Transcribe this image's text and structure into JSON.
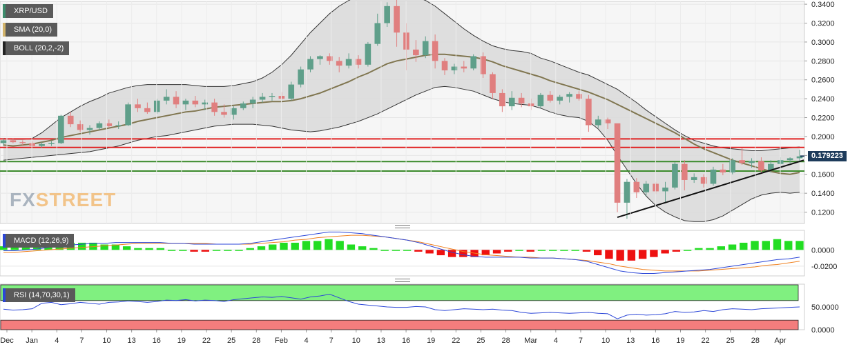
{
  "indicators": {
    "symbol": "XRP/USD",
    "sma": "SMA (20,0)",
    "boll": "BOLL (20,2,-2)",
    "macd": "MACD (12,26,9)",
    "rsi": "RSI (14,70,30,1)"
  },
  "colors": {
    "bull": "#5f9f8a",
    "bear": "#e07f7f",
    "sma": "#807650",
    "band_fill": "#d9d9d9",
    "resistance": "#e02020",
    "support": "#3a8a2a",
    "macd_line": "#2b46d8",
    "signal_line": "#f0801e",
    "hist_pos": "#22dd22",
    "hist_neg": "#ee1111",
    "rsi_over": "#80f080",
    "rsi_under": "#f47d7d"
  },
  "watermark": {
    "part1": "FX",
    "part2": "STREET"
  },
  "current_price": "0.179223",
  "chart_data": {
    "type": "candlestick",
    "x_ticks": [
      "Dec",
      "Jan",
      "4",
      "7",
      "10",
      "13",
      "16",
      "19",
      "22",
      "25",
      "28",
      "Feb",
      "4",
      "7",
      "10",
      "13",
      "16",
      "19",
      "22",
      "25",
      "28",
      "Mar",
      "4",
      "7",
      "10",
      "13",
      "16",
      "19",
      "22",
      "25",
      "28",
      "Apr"
    ],
    "y_ticks": [
      "0.3400",
      "0.3200",
      "0.3000",
      "0.2800",
      "0.2600",
      "0.2400",
      "0.2200",
      "0.2000",
      "0.1800",
      "0.1600",
      "0.1400",
      "0.1200"
    ],
    "ylim": [
      0.108,
      0.343
    ],
    "horizontal_levels": {
      "resistance": [
        0.1975,
        0.1885
      ],
      "support": [
        0.1735,
        0.1635
      ]
    },
    "trendline": [
      [
        0,
        0.1145
      ],
      [
        1,
        0.175
      ]
    ],
    "candles": [
      [
        0.193,
        0.198,
        0.19,
        0.196
      ],
      [
        0.196,
        0.198,
        0.193,
        0.194
      ],
      [
        0.194,
        0.196,
        0.191,
        0.193
      ],
      [
        0.193,
        0.195,
        0.189,
        0.19
      ],
      [
        0.19,
        0.194,
        0.188,
        0.192
      ],
      [
        0.192,
        0.195,
        0.19,
        0.193
      ],
      [
        0.193,
        0.223,
        0.192,
        0.222
      ],
      [
        0.222,
        0.226,
        0.21,
        0.213
      ],
      [
        0.213,
        0.217,
        0.205,
        0.207
      ],
      [
        0.207,
        0.212,
        0.202,
        0.209
      ],
      [
        0.209,
        0.216,
        0.207,
        0.214
      ],
      [
        0.214,
        0.218,
        0.209,
        0.211
      ],
      [
        0.211,
        0.216,
        0.208,
        0.212
      ],
      [
        0.212,
        0.236,
        0.211,
        0.234
      ],
      [
        0.234,
        0.24,
        0.226,
        0.23
      ],
      [
        0.23,
        0.236,
        0.224,
        0.226
      ],
      [
        0.226,
        0.24,
        0.224,
        0.238
      ],
      [
        0.238,
        0.25,
        0.234,
        0.242
      ],
      [
        0.242,
        0.248,
        0.23,
        0.234
      ],
      [
        0.234,
        0.24,
        0.228,
        0.238
      ],
      [
        0.238,
        0.243,
        0.231,
        0.234
      ],
      [
        0.234,
        0.239,
        0.228,
        0.236
      ],
      [
        0.236,
        0.24,
        0.222,
        0.226
      ],
      [
        0.226,
        0.234,
        0.22,
        0.223
      ],
      [
        0.223,
        0.232,
        0.218,
        0.23
      ],
      [
        0.23,
        0.237,
        0.228,
        0.235
      ],
      [
        0.235,
        0.242,
        0.23,
        0.239
      ],
      [
        0.239,
        0.246,
        0.236,
        0.242
      ],
      [
        0.242,
        0.246,
        0.238,
        0.243
      ],
      [
        0.243,
        0.247,
        0.239,
        0.24
      ],
      [
        0.24,
        0.258,
        0.238,
        0.255
      ],
      [
        0.255,
        0.274,
        0.252,
        0.271
      ],
      [
        0.271,
        0.285,
        0.268,
        0.282
      ],
      [
        0.282,
        0.286,
        0.276,
        0.285
      ],
      [
        0.285,
        0.288,
        0.276,
        0.28
      ],
      [
        0.28,
        0.284,
        0.268,
        0.275
      ],
      [
        0.275,
        0.288,
        0.272,
        0.282
      ],
      [
        0.282,
        0.286,
        0.272,
        0.276
      ],
      [
        0.276,
        0.3,
        0.274,
        0.298
      ],
      [
        0.298,
        0.33,
        0.296,
        0.32
      ],
      [
        0.32,
        0.342,
        0.316,
        0.338
      ],
      [
        0.338,
        0.345,
        0.295,
        0.31
      ],
      [
        0.31,
        0.32,
        0.27,
        0.292
      ],
      [
        0.292,
        0.302,
        0.279,
        0.286
      ],
      [
        0.286,
        0.306,
        0.283,
        0.301
      ],
      [
        0.301,
        0.308,
        0.272,
        0.28
      ],
      [
        0.28,
        0.283,
        0.265,
        0.27
      ],
      [
        0.27,
        0.277,
        0.266,
        0.274
      ],
      [
        0.274,
        0.28,
        0.268,
        0.272
      ],
      [
        0.272,
        0.287,
        0.27,
        0.285
      ],
      [
        0.285,
        0.289,
        0.262,
        0.266
      ],
      [
        0.266,
        0.268,
        0.24,
        0.246
      ],
      [
        0.246,
        0.25,
        0.226,
        0.232
      ],
      [
        0.232,
        0.248,
        0.228,
        0.241
      ],
      [
        0.241,
        0.246,
        0.231,
        0.235
      ],
      [
        0.235,
        0.24,
        0.228,
        0.232
      ],
      [
        0.232,
        0.246,
        0.23,
        0.244
      ],
      [
        0.244,
        0.248,
        0.236,
        0.238
      ],
      [
        0.238,
        0.244,
        0.234,
        0.242
      ],
      [
        0.242,
        0.247,
        0.236,
        0.245
      ],
      [
        0.245,
        0.248,
        0.238,
        0.24
      ],
      [
        0.24,
        0.244,
        0.205,
        0.212
      ],
      [
        0.212,
        0.222,
        0.209,
        0.218
      ],
      [
        0.218,
        0.22,
        0.208,
        0.214
      ],
      [
        0.214,
        0.212,
        0.12,
        0.13
      ],
      [
        0.13,
        0.155,
        0.113,
        0.152
      ],
      [
        0.152,
        0.156,
        0.135,
        0.141
      ],
      [
        0.141,
        0.153,
        0.137,
        0.15
      ],
      [
        0.15,
        0.152,
        0.139,
        0.142
      ],
      [
        0.142,
        0.152,
        0.13,
        0.146
      ],
      [
        0.146,
        0.173,
        0.144,
        0.171
      ],
      [
        0.171,
        0.175,
        0.143,
        0.154
      ],
      [
        0.154,
        0.161,
        0.151,
        0.157
      ],
      [
        0.157,
        0.16,
        0.146,
        0.15
      ],
      [
        0.15,
        0.168,
        0.148,
        0.165
      ],
      [
        0.165,
        0.171,
        0.159,
        0.162
      ],
      [
        0.162,
        0.177,
        0.16,
        0.175
      ],
      [
        0.175,
        0.188,
        0.17,
        0.172
      ],
      [
        0.172,
        0.177,
        0.167,
        0.174
      ],
      [
        0.174,
        0.178,
        0.161,
        0.164
      ],
      [
        0.164,
        0.175,
        0.162,
        0.171
      ],
      [
        0.171,
        0.178,
        0.169,
        0.175
      ],
      [
        0.175,
        0.178,
        0.172,
        0.177
      ],
      [
        0.177,
        0.186,
        0.174,
        0.179
      ]
    ],
    "sma": [
      0.191,
      0.19,
      0.191,
      0.192,
      0.194,
      0.196,
      0.199,
      0.201,
      0.203,
      0.205,
      0.207,
      0.209,
      0.211,
      0.213,
      0.216,
      0.218,
      0.22,
      0.222,
      0.224,
      0.226,
      0.227,
      0.229,
      0.231,
      0.232,
      0.233,
      0.234,
      0.235,
      0.236,
      0.237,
      0.237,
      0.238,
      0.24,
      0.243,
      0.246,
      0.25,
      0.254,
      0.258,
      0.263,
      0.267,
      0.272,
      0.277,
      0.28,
      0.282,
      0.284,
      0.286,
      0.287,
      0.287,
      0.286,
      0.285,
      0.284,
      0.282,
      0.279,
      0.275,
      0.272,
      0.269,
      0.266,
      0.263,
      0.259,
      0.256,
      0.253,
      0.25,
      0.247,
      0.243,
      0.239,
      0.234,
      0.229,
      0.224,
      0.219,
      0.214,
      0.209,
      0.204,
      0.198,
      0.192,
      0.187,
      0.183,
      0.179,
      0.175,
      0.172,
      0.169,
      0.166,
      0.163,
      0.161,
      0.16,
      0.162
    ],
    "boll_upper": [
      0.198,
      0.197,
      0.197,
      0.198,
      0.204,
      0.212,
      0.22,
      0.226,
      0.232,
      0.237,
      0.241,
      0.246,
      0.249,
      0.252,
      0.254,
      0.255,
      0.255,
      0.255,
      0.255,
      0.255,
      0.254,
      0.253,
      0.253,
      0.253,
      0.254,
      0.256,
      0.258,
      0.262,
      0.268,
      0.276,
      0.286,
      0.298,
      0.31,
      0.32,
      0.33,
      0.338,
      0.344,
      0.349,
      0.352,
      0.355,
      0.355,
      0.354,
      0.352,
      0.348,
      0.344,
      0.338,
      0.33,
      0.322,
      0.314,
      0.307,
      0.301,
      0.296,
      0.293,
      0.291,
      0.29,
      0.288,
      0.283,
      0.28,
      0.276,
      0.272,
      0.268,
      0.265,
      0.26,
      0.255,
      0.25,
      0.243,
      0.236,
      0.228,
      0.221,
      0.214,
      0.207,
      0.201,
      0.196,
      0.193,
      0.19,
      0.188,
      0.187,
      0.186,
      0.185,
      0.185,
      0.186,
      0.187,
      0.188,
      0.189
    ],
    "boll_lower": [
      0.175,
      0.176,
      0.177,
      0.178,
      0.179,
      0.18,
      0.181,
      0.182,
      0.183,
      0.184,
      0.186,
      0.188,
      0.19,
      0.193,
      0.196,
      0.198,
      0.2,
      0.201,
      0.203,
      0.205,
      0.207,
      0.209,
      0.211,
      0.212,
      0.213,
      0.213,
      0.213,
      0.212,
      0.211,
      0.209,
      0.207,
      0.206,
      0.205,
      0.206,
      0.208,
      0.21,
      0.213,
      0.216,
      0.22,
      0.224,
      0.229,
      0.234,
      0.239,
      0.244,
      0.248,
      0.252,
      0.253,
      0.252,
      0.25,
      0.248,
      0.244,
      0.24,
      0.237,
      0.235,
      0.234,
      0.233,
      0.23,
      0.226,
      0.223,
      0.221,
      0.22,
      0.216,
      0.208,
      0.196,
      0.18,
      0.165,
      0.15,
      0.137,
      0.127,
      0.12,
      0.115,
      0.111,
      0.11,
      0.11,
      0.112,
      0.116,
      0.122,
      0.128,
      0.134,
      0.138,
      0.14,
      0.141,
      0.14,
      0.141
    ],
    "macd": {
      "y_ticks": [
        "0.0000",
        "-0.0200"
      ],
      "ylim": [
        -0.032,
        0.024
      ],
      "macd_line": [
        -0.001,
        -0.001,
        0.0,
        0.001,
        0.003,
        0.005,
        0.006,
        0.007,
        0.008,
        0.008,
        0.009,
        0.009,
        0.009,
        0.009,
        0.009,
        0.008,
        0.008,
        0.007,
        0.007,
        0.007,
        0.007,
        0.007,
        0.008,
        0.01,
        0.012,
        0.014,
        0.016,
        0.018,
        0.02,
        0.022,
        0.022,
        0.021,
        0.02,
        0.018,
        0.016,
        0.014,
        0.012,
        0.009,
        0.005,
        0.001,
        -0.003,
        -0.006,
        -0.008,
        -0.009,
        -0.009,
        -0.009,
        -0.009,
        -0.01,
        -0.01,
        -0.01,
        -0.011,
        -0.012,
        -0.014,
        -0.018,
        -0.022,
        -0.026,
        -0.028,
        -0.029,
        -0.029,
        -0.028,
        -0.027,
        -0.026,
        -0.025,
        -0.024,
        -0.022,
        -0.02,
        -0.018,
        -0.016,
        -0.014,
        -0.012,
        -0.011,
        -0.009
      ],
      "signal_line": [
        -0.003,
        -0.003,
        -0.002,
        -0.001,
        0.0,
        0.001,
        0.002,
        0.003,
        0.004,
        0.005,
        0.006,
        0.007,
        0.008,
        0.008,
        0.008,
        0.008,
        0.008,
        0.008,
        0.008,
        0.007,
        0.007,
        0.007,
        0.007,
        0.008,
        0.009,
        0.01,
        0.012,
        0.013,
        0.015,
        0.016,
        0.017,
        0.018,
        0.018,
        0.017,
        0.016,
        0.014,
        0.012,
        0.01,
        0.007,
        0.004,
        0.001,
        -0.002,
        -0.004,
        -0.006,
        -0.007,
        -0.008,
        -0.009,
        -0.009,
        -0.01,
        -0.01,
        -0.011,
        -0.012,
        -0.013,
        -0.015,
        -0.017,
        -0.02,
        -0.022,
        -0.024,
        -0.025,
        -0.026,
        -0.026,
        -0.026,
        -0.026,
        -0.025,
        -0.024,
        -0.023,
        -0.022,
        -0.021,
        -0.019,
        -0.018,
        -0.016,
        -0.014
      ]
    },
    "rsi": {
      "y_ticks": [
        "50.0000",
        "0.0000"
      ],
      "ylim": [
        0,
        100
      ],
      "overbought": 70,
      "oversold": 30,
      "values": [
        45,
        43,
        44,
        46,
        58,
        60,
        55,
        57,
        60,
        58,
        56,
        60,
        61,
        63,
        62,
        60,
        62,
        65,
        64,
        66,
        63,
        65,
        64,
        62,
        66,
        68,
        70,
        72,
        71,
        73,
        70,
        67,
        72,
        74,
        78,
        70,
        62,
        56,
        54,
        52,
        50,
        49,
        49,
        51,
        50,
        44,
        42,
        44,
        46,
        45,
        44,
        45,
        43,
        42,
        38,
        36,
        37,
        38,
        37,
        36,
        37,
        38,
        36,
        35,
        24,
        32,
        34,
        32,
        33,
        35,
        40,
        38,
        39,
        42,
        40,
        44,
        46,
        45,
        44,
        46,
        47,
        48,
        49,
        50
      ]
    }
  }
}
